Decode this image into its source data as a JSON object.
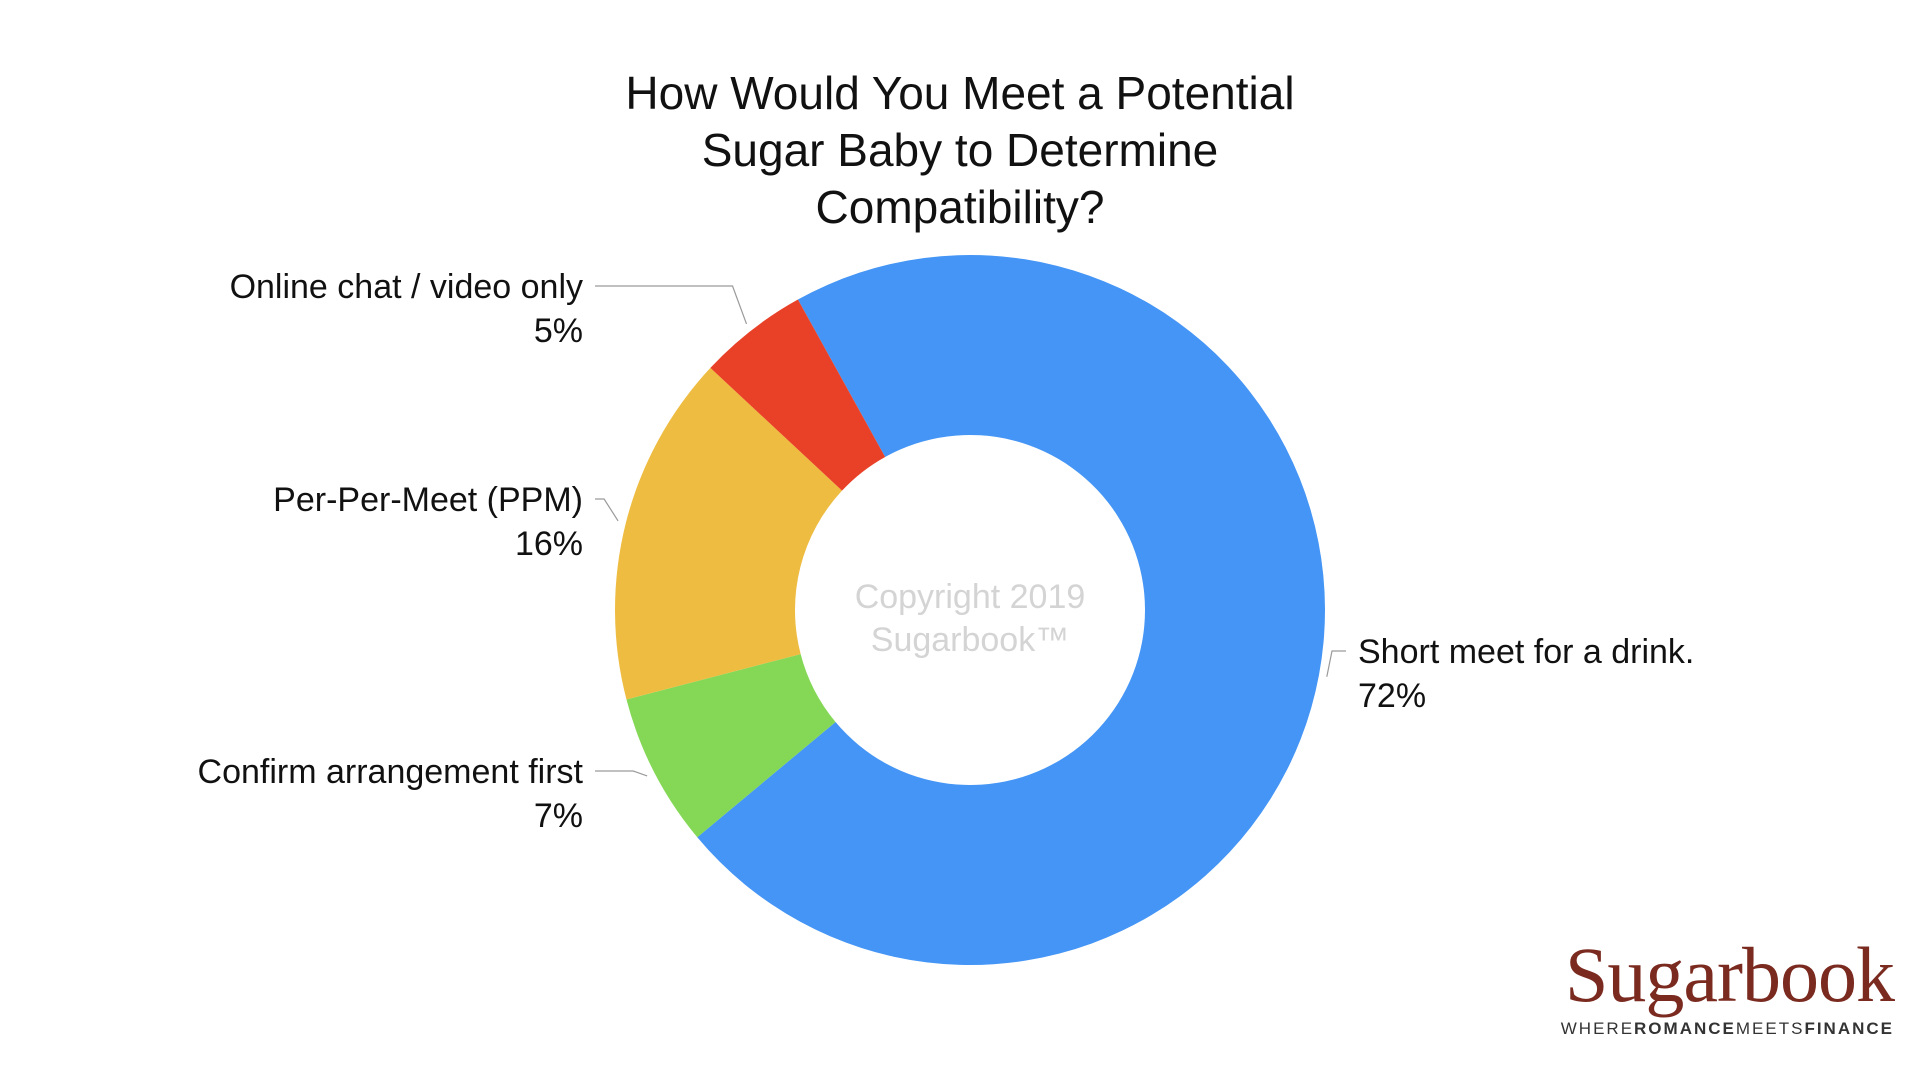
{
  "chart_data": {
    "type": "pie",
    "variant": "donut",
    "title": "How Would You Meet a Potential Sugar Baby to Determine Compatibility?",
    "title_lines": [
      "How Would You Meet a Potential",
      "Sugar Baby to Determine",
      "Compatibility?"
    ],
    "categories": [
      "Short meet for a drink.",
      "Confirm arrangement first",
      "Per-Per-Meet (PPM)",
      "Online chat / video only"
    ],
    "values": [
      72,
      7,
      16,
      5
    ],
    "labels": [
      "72%",
      "7%",
      "16%",
      "5%"
    ],
    "colors": [
      "#4495f5",
      "#84d856",
      "#eebc40",
      "#e94128"
    ],
    "watermark": [
      "Copyright 2019",
      "Sugarbook™"
    ],
    "legend": "none"
  },
  "logo": {
    "wordmark": "Sugarbook",
    "tagline_parts": [
      "WHERE",
      "ROMANCE",
      "MEETS",
      "FINANCE"
    ]
  }
}
